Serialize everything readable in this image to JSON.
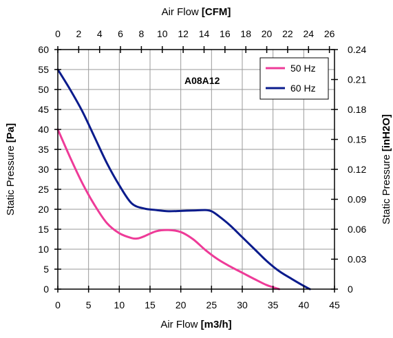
{
  "chart_data": {
    "type": "line",
    "model_label": "A08A12",
    "x_bottom": {
      "title": "Air Flow",
      "unit": "[m3/h]",
      "range": [
        0,
        45
      ],
      "ticks": [
        0,
        5,
        10,
        15,
        20,
        25,
        30,
        35,
        40,
        45
      ]
    },
    "x_top": {
      "title": "Air Flow",
      "unit": "[CFM]",
      "range": [
        0,
        26.486
      ],
      "ticks": [
        0,
        2,
        4,
        6,
        8,
        10,
        12,
        14,
        16,
        18,
        20,
        22,
        24,
        26
      ]
    },
    "y_left": {
      "title": "Static Pressure",
      "unit": "[Pa]",
      "range": [
        0,
        60
      ],
      "ticks": [
        0,
        5,
        10,
        15,
        20,
        25,
        30,
        35,
        40,
        45,
        50,
        55,
        60
      ]
    },
    "y_right": {
      "title": "Static Pressure",
      "unit": "[inH2O]",
      "range": [
        0,
        0.24
      ],
      "ticks": [
        "0",
        "0.03",
        "0.06",
        "0.09",
        "0.12",
        "0.15",
        "0.18",
        "0.21",
        "0.24"
      ]
    },
    "grid": true,
    "legend_position": "top-right",
    "series": [
      {
        "name": "50 Hz",
        "color": "#ee3b98",
        "x": [
          0,
          2,
          4,
          6,
          8,
          10,
          12,
          13,
          14,
          16,
          18,
          20,
          22,
          24,
          26,
          28,
          30,
          32,
          34,
          36
        ],
        "y": [
          40,
          33,
          26.5,
          21,
          16.5,
          14,
          12.8,
          12.7,
          13.2,
          14.5,
          14.8,
          14.3,
          12.5,
          9.8,
          7.5,
          5.7,
          4.1,
          2.5,
          1,
          0
        ]
      },
      {
        "name": "60 Hz",
        "color": "#0a1b8c",
        "x": [
          0,
          2,
          4,
          6,
          8,
          10,
          12,
          14,
          16,
          18,
          20,
          22,
          24,
          25,
          26,
          28,
          30,
          32,
          34,
          36,
          38,
          40,
          41
        ],
        "y": [
          55,
          50,
          44.5,
          38,
          31.5,
          26,
          21.5,
          20.2,
          19.8,
          19.5,
          19.6,
          19.7,
          19.8,
          19.5,
          18.5,
          16,
          13,
          10,
          7,
          4.5,
          2.6,
          0.8,
          0
        ]
      }
    ]
  }
}
